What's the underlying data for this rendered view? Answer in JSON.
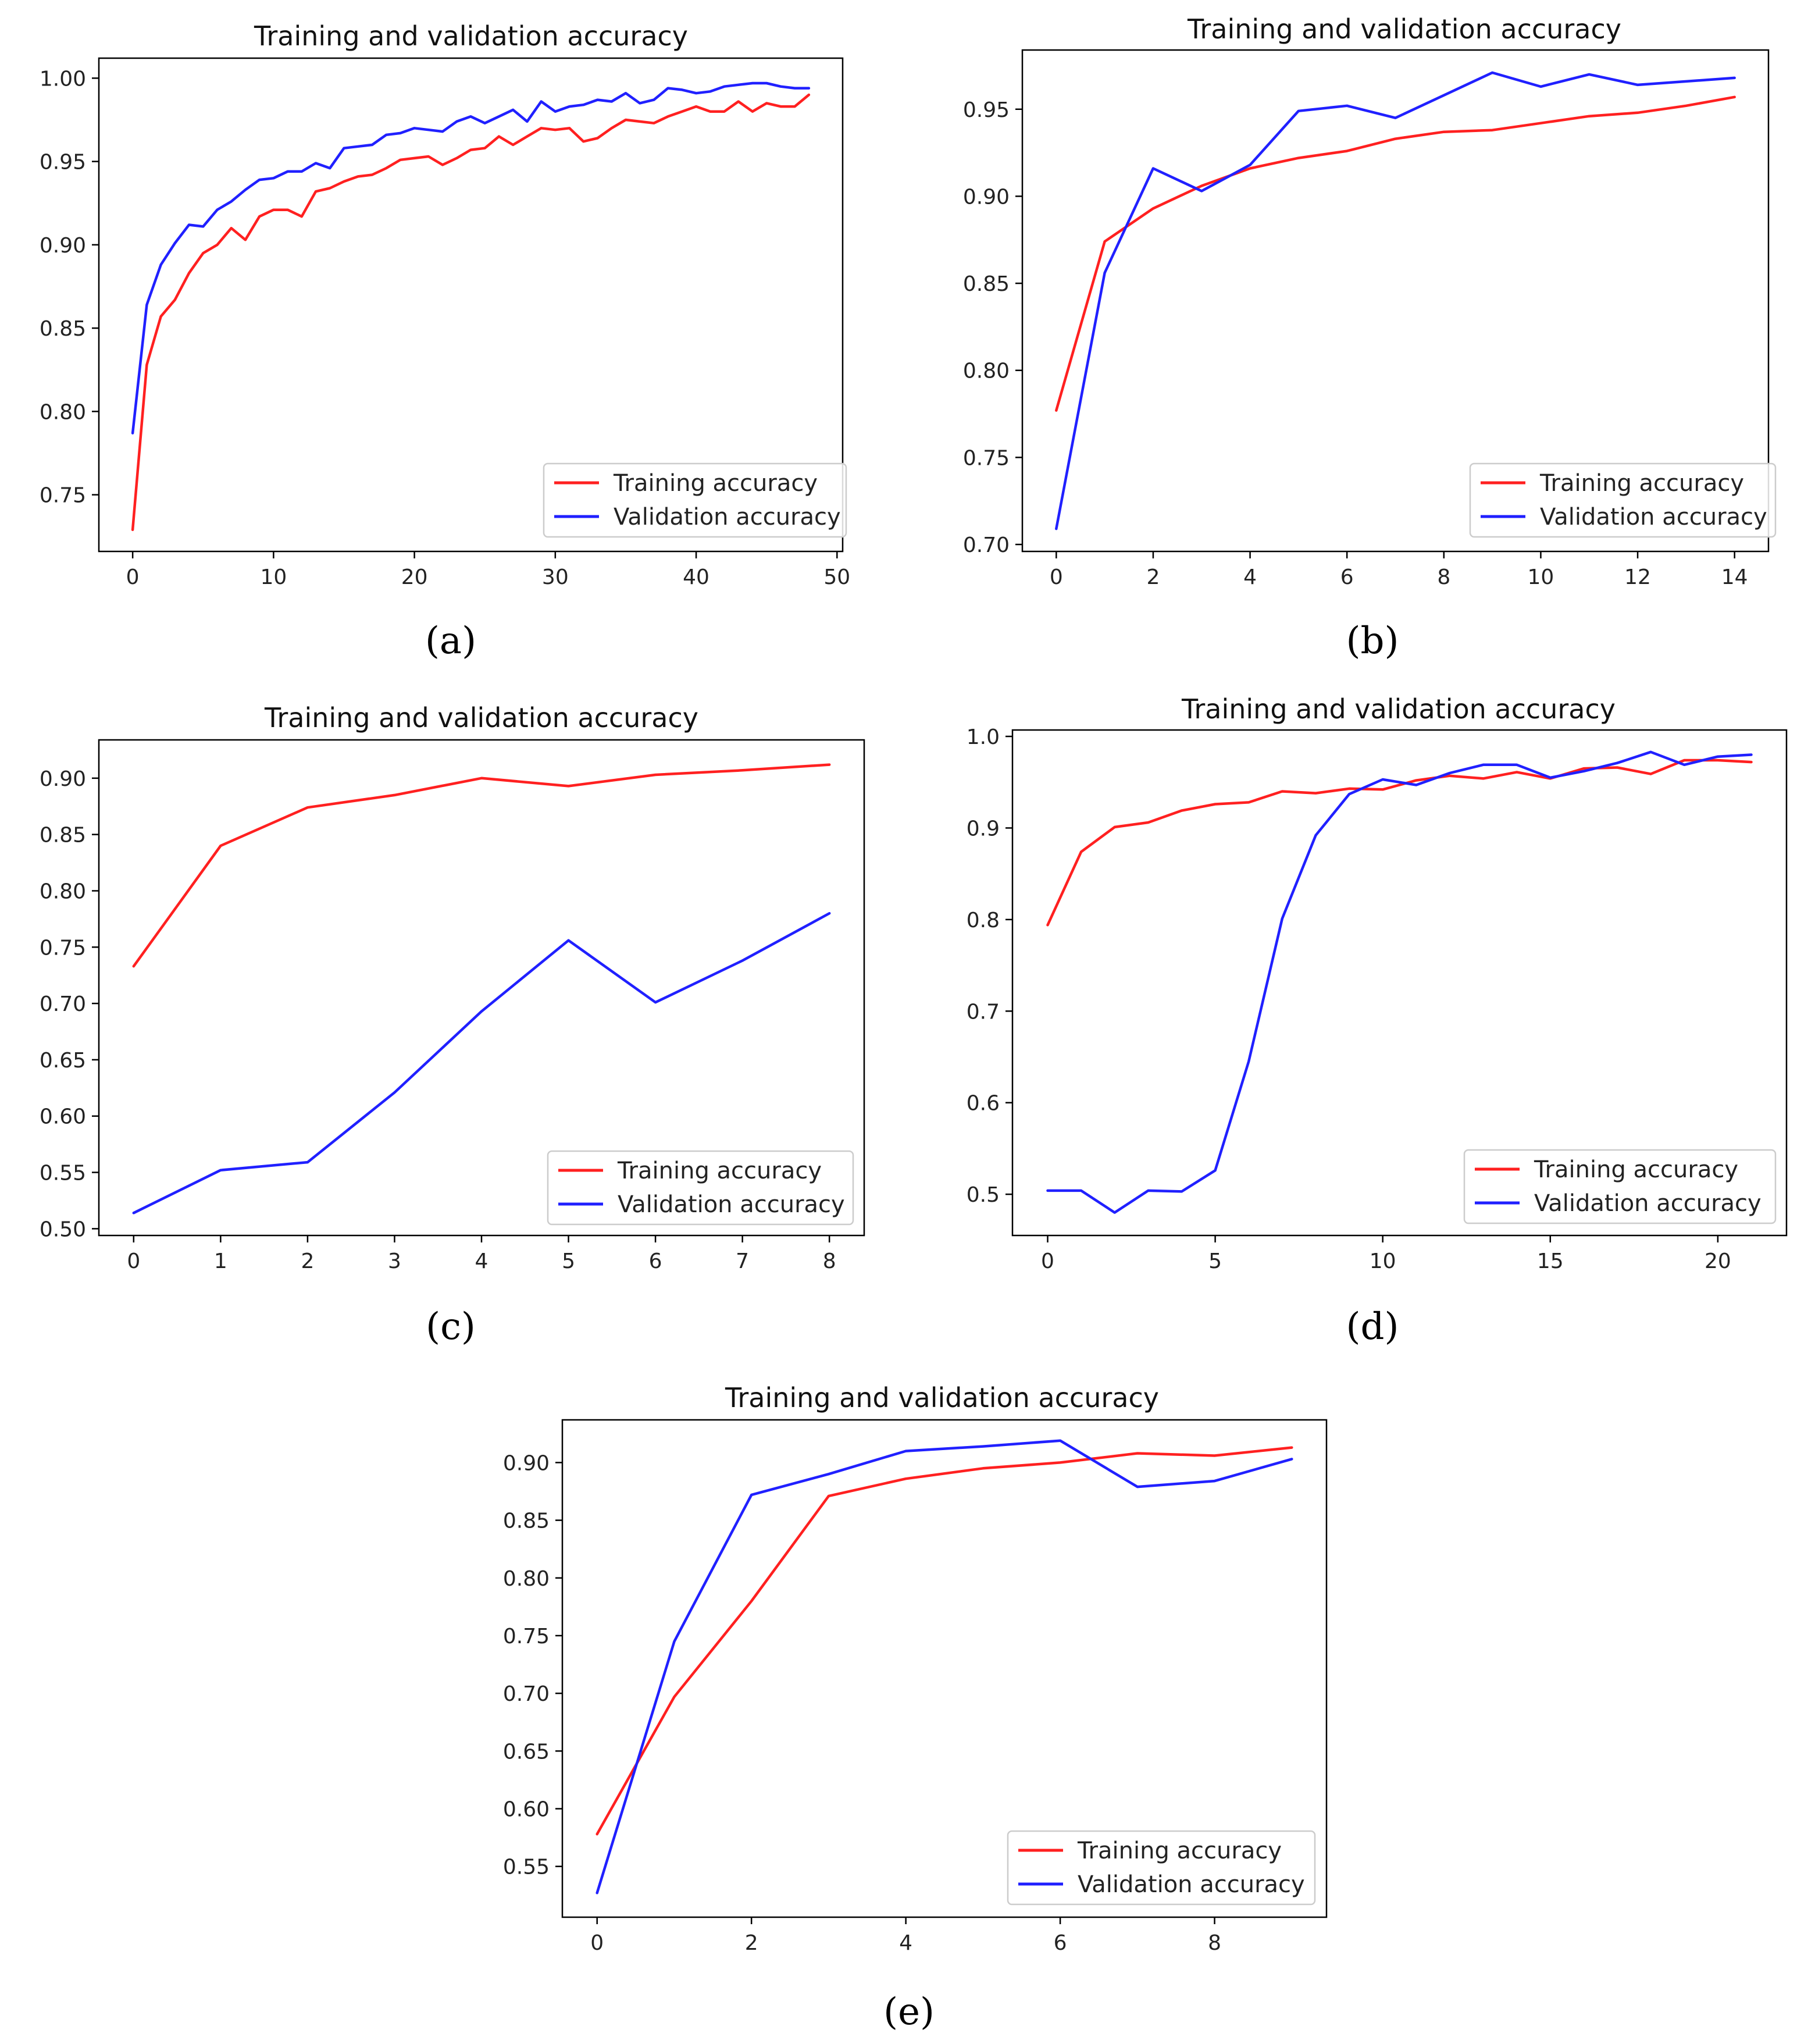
{
  "figure": {
    "colors": {
      "training": "#ff2020",
      "validation": "#2020ff",
      "axis": "#000000",
      "legend_border": "#cccccc"
    }
  },
  "chart_data": [
    {
      "panel": "a",
      "caption": {
        "open": "(",
        "letter": "a",
        "close": ")"
      },
      "type": "line",
      "title": "Training and validation accuracy",
      "xlabel": "",
      "ylabel": "",
      "xlim": [
        -2.4,
        50.4
      ],
      "ylim": [
        0.716,
        1.012
      ],
      "xticks": [
        0,
        10,
        20,
        30,
        40,
        50
      ],
      "yticks": [
        0.75,
        0.8,
        0.85,
        0.9,
        0.95,
        1.0
      ],
      "xtick_labels": [
        "0",
        "10",
        "20",
        "30",
        "40",
        "50"
      ],
      "ytick_labels": [
        "0.75",
        "0.80",
        "0.85",
        "0.90",
        "0.95",
        "1.00"
      ],
      "grid": false,
      "legend_position": "lower-right",
      "series": [
        {
          "name": "Training accuracy",
          "color": "#ff2020",
          "x": [
            0,
            1,
            2,
            3,
            4,
            5,
            6,
            7,
            8,
            9,
            10,
            11,
            12,
            13,
            14,
            15,
            16,
            17,
            18,
            19,
            20,
            21,
            22,
            23,
            24,
            25,
            26,
            27,
            28,
            29,
            30,
            31,
            32,
            33,
            34,
            35,
            36,
            37,
            38,
            39,
            40,
            41,
            42,
            43,
            44,
            45,
            46,
            47,
            48
          ],
          "values": [
            0.729,
            0.828,
            0.857,
            0.867,
            0.883,
            0.895,
            0.9,
            0.91,
            0.903,
            0.917,
            0.921,
            0.921,
            0.917,
            0.932,
            0.934,
            0.938,
            0.941,
            0.942,
            0.946,
            0.951,
            0.952,
            0.953,
            0.948,
            0.952,
            0.957,
            0.958,
            0.965,
            0.96,
            0.965,
            0.97,
            0.969,
            0.97,
            0.962,
            0.964,
            0.97,
            0.975,
            0.974,
            0.973,
            0.977,
            0.98,
            0.983,
            0.98,
            0.98,
            0.986,
            0.98,
            0.985,
            0.983,
            0.983,
            0.99
          ]
        },
        {
          "name": "Validation accuracy",
          "color": "#2020ff",
          "x": [
            0,
            1,
            2,
            3,
            4,
            5,
            6,
            7,
            8,
            9,
            10,
            11,
            12,
            13,
            14,
            15,
            16,
            17,
            18,
            19,
            20,
            21,
            22,
            23,
            24,
            25,
            26,
            27,
            28,
            29,
            30,
            31,
            32,
            33,
            34,
            35,
            36,
            37,
            38,
            39,
            40,
            41,
            42,
            43,
            44,
            45,
            46,
            47,
            48
          ],
          "values": [
            0.787,
            0.864,
            0.888,
            0.901,
            0.912,
            0.911,
            0.921,
            0.926,
            0.933,
            0.939,
            0.94,
            0.944,
            0.944,
            0.949,
            0.946,
            0.958,
            0.959,
            0.96,
            0.966,
            0.967,
            0.97,
            0.969,
            0.968,
            0.974,
            0.977,
            0.973,
            0.977,
            0.981,
            0.974,
            0.986,
            0.98,
            0.983,
            0.984,
            0.987,
            0.986,
            0.991,
            0.985,
            0.987,
            0.994,
            0.993,
            0.991,
            0.992,
            0.995,
            0.996,
            0.997,
            0.997,
            0.995,
            0.994,
            0.994
          ]
        }
      ]
    },
    {
      "panel": "b",
      "caption": {
        "open": "(",
        "letter": "b",
        "close": ")"
      },
      "type": "line",
      "title": "Training and validation accuracy",
      "xlabel": "",
      "ylabel": "",
      "xlim": [
        -0.7,
        14.7
      ],
      "ylim": [
        0.696,
        0.984
      ],
      "xticks": [
        0,
        2,
        4,
        6,
        8,
        10,
        12,
        14
      ],
      "yticks": [
        0.7,
        0.75,
        0.8,
        0.85,
        0.9,
        0.95
      ],
      "xtick_labels": [
        "0",
        "2",
        "4",
        "6",
        "8",
        "10",
        "12",
        "14"
      ],
      "ytick_labels": [
        "0.70",
        "0.75",
        "0.80",
        "0.85",
        "0.90",
        "0.95"
      ],
      "grid": false,
      "legend_position": "lower-right",
      "series": [
        {
          "name": "Training accuracy",
          "color": "#ff2020",
          "x": [
            0,
            1,
            2,
            3,
            4,
            5,
            6,
            7,
            8,
            9,
            10,
            11,
            12,
            13,
            14
          ],
          "values": [
            0.777,
            0.874,
            0.893,
            0.906,
            0.916,
            0.922,
            0.926,
            0.933,
            0.937,
            0.938,
            0.942,
            0.946,
            0.948,
            0.952,
            0.957
          ]
        },
        {
          "name": "Validation accuracy",
          "color": "#2020ff",
          "x": [
            0,
            1,
            2,
            3,
            4,
            5,
            6,
            7,
            8,
            9,
            10,
            11,
            12,
            13,
            14
          ],
          "values": [
            0.709,
            0.856,
            0.916,
            0.903,
            0.918,
            0.949,
            0.952,
            0.945,
            0.958,
            0.971,
            0.963,
            0.97,
            0.964,
            0.966,
            0.968
          ]
        }
      ]
    },
    {
      "panel": "c",
      "caption": {
        "open": "(",
        "letter": "c",
        "close": ")"
      },
      "type": "line",
      "title": "Training and validation accuracy",
      "xlabel": "",
      "ylabel": "",
      "xlim": [
        -0.4,
        8.4
      ],
      "ylim": [
        0.494,
        0.934
      ],
      "xticks": [
        0,
        1,
        2,
        3,
        4,
        5,
        6,
        7,
        8
      ],
      "yticks": [
        0.5,
        0.55,
        0.6,
        0.65,
        0.7,
        0.75,
        0.8,
        0.85,
        0.9
      ],
      "xtick_labels": [
        "0",
        "1",
        "2",
        "3",
        "4",
        "5",
        "6",
        "7",
        "8"
      ],
      "ytick_labels": [
        "0.50",
        "0.55",
        "0.60",
        "0.65",
        "0.70",
        "0.75",
        "0.80",
        "0.85",
        "0.90"
      ],
      "grid": false,
      "legend_position": "lower-right",
      "series": [
        {
          "name": "Training accuracy",
          "color": "#ff2020",
          "x": [
            0,
            1,
            2,
            3,
            4,
            5,
            6,
            7,
            8
          ],
          "values": [
            0.733,
            0.84,
            0.874,
            0.885,
            0.9,
            0.893,
            0.903,
            0.907,
            0.912
          ]
        },
        {
          "name": "Validation accuracy",
          "color": "#2020ff",
          "x": [
            0,
            1,
            2,
            3,
            4,
            5,
            6,
            7,
            8
          ],
          "values": [
            0.514,
            0.552,
            0.559,
            0.621,
            0.693,
            0.756,
            0.701,
            0.738,
            0.78
          ]
        }
      ]
    },
    {
      "panel": "d",
      "caption": {
        "open": "(",
        "letter": "d",
        "close": ")"
      },
      "type": "line",
      "title": "Training and validation accuracy",
      "xlabel": "",
      "ylabel": "",
      "xlim": [
        -1.05,
        22.05
      ],
      "ylim": [
        0.455,
        1.007
      ],
      "xticks": [
        0,
        5,
        10,
        15,
        20
      ],
      "yticks": [
        0.5,
        0.6,
        0.7,
        0.8,
        0.9,
        1.0
      ],
      "xtick_labels": [
        "0",
        "5",
        "10",
        "15",
        "20"
      ],
      "ytick_labels": [
        "0.5",
        "0.6",
        "0.7",
        "0.8",
        "0.9",
        "1.0"
      ],
      "grid": false,
      "legend_position": "lower-right",
      "series": [
        {
          "name": "Training accuracy",
          "color": "#ff2020",
          "x": [
            0,
            1,
            2,
            3,
            4,
            5,
            6,
            7,
            8,
            9,
            10,
            11,
            12,
            13,
            14,
            15,
            16,
            17,
            18,
            19,
            20,
            21
          ],
          "values": [
            0.794,
            0.874,
            0.901,
            0.906,
            0.919,
            0.926,
            0.928,
            0.94,
            0.938,
            0.943,
            0.942,
            0.952,
            0.957,
            0.954,
            0.961,
            0.954,
            0.965,
            0.966,
            0.959,
            0.974,
            0.974,
            0.972
          ]
        },
        {
          "name": "Validation accuracy",
          "color": "#2020ff",
          "x": [
            0,
            1,
            2,
            3,
            4,
            5,
            6,
            7,
            8,
            9,
            10,
            11,
            12,
            13,
            14,
            15,
            16,
            17,
            18,
            19,
            20,
            21
          ],
          "values": [
            0.504,
            0.504,
            0.48,
            0.504,
            0.503,
            0.526,
            0.645,
            0.801,
            0.892,
            0.937,
            0.953,
            0.947,
            0.96,
            0.969,
            0.969,
            0.955,
            0.962,
            0.971,
            0.983,
            0.969,
            0.978,
            0.98
          ]
        }
      ]
    },
    {
      "panel": "e",
      "caption": {
        "open": "(",
        "letter": "e",
        "close": ")"
      },
      "type": "line",
      "title": "Training and validation accuracy",
      "xlabel": "",
      "ylabel": "",
      "xlim": [
        -0.45,
        9.45
      ],
      "ylim": [
        0.506,
        0.937
      ],
      "xticks": [
        0,
        2,
        4,
        6,
        8
      ],
      "yticks": [
        0.55,
        0.6,
        0.65,
        0.7,
        0.75,
        0.8,
        0.85,
        0.9
      ],
      "xtick_labels": [
        "0",
        "2",
        "4",
        "6",
        "8"
      ],
      "ytick_labels": [
        "0.55",
        "0.60",
        "0.65",
        "0.70",
        "0.75",
        "0.80",
        "0.85",
        "0.90"
      ],
      "grid": false,
      "legend_position": "lower-right",
      "series": [
        {
          "name": "Training accuracy",
          "color": "#ff2020",
          "x": [
            0,
            1,
            2,
            3,
            4,
            5,
            6,
            7,
            8,
            9
          ],
          "values": [
            0.578,
            0.697,
            0.78,
            0.871,
            0.886,
            0.895,
            0.9,
            0.908,
            0.906,
            0.913
          ]
        },
        {
          "name": "Validation accuracy",
          "color": "#2020ff",
          "x": [
            0,
            1,
            2,
            3,
            4,
            5,
            6,
            7,
            8,
            9
          ],
          "values": [
            0.527,
            0.745,
            0.872,
            0.89,
            0.91,
            0.914,
            0.919,
            0.879,
            0.884,
            0.903
          ]
        }
      ]
    }
  ]
}
